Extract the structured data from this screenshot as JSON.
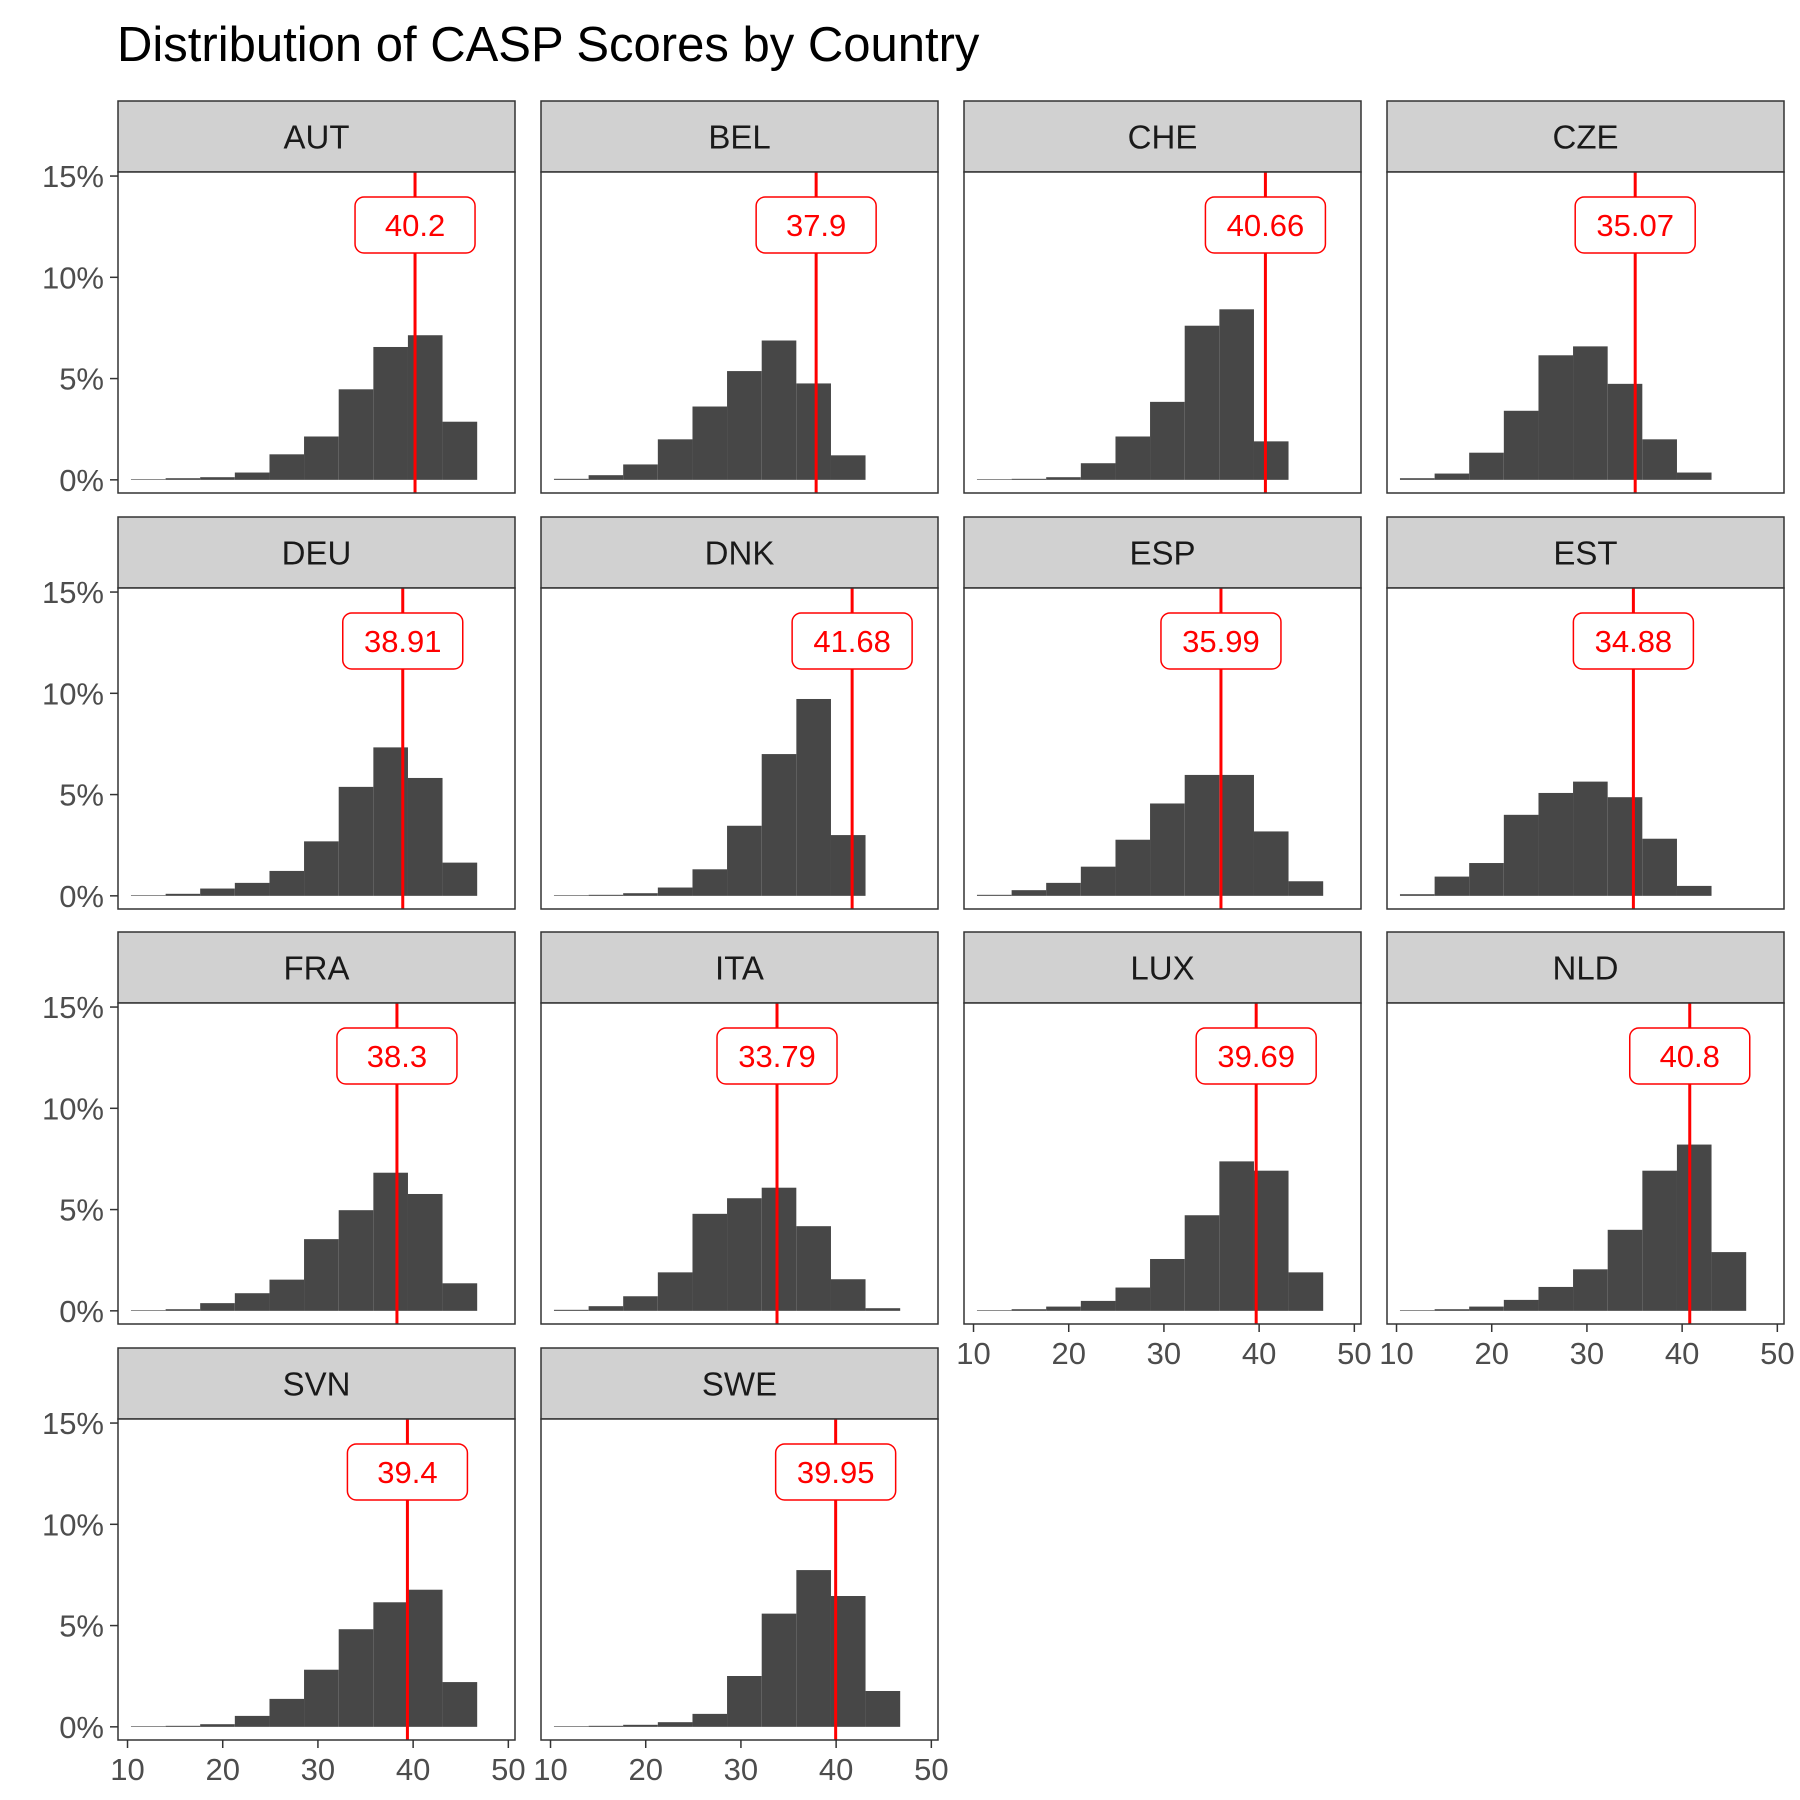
{
  "chart_data": {
    "type": "bar",
    "title": "Distribution of CASP Scores by Country",
    "xlabel": "",
    "ylabel": "",
    "bin_width": 3.636,
    "bin_centers": [
      12.18,
      15.82,
      19.45,
      23.09,
      26.73,
      30.36,
      34.0,
      37.64,
      41.27,
      44.91,
      48.55
    ],
    "xlim": [
      9.0,
      50.7
    ],
    "ylim": [
      -0.0065,
      0.152
    ],
    "x_ticks": [
      10,
      20,
      30,
      40,
      50
    ],
    "x_tick_labels": [
      "10",
      "20",
      "30",
      "40",
      "50"
    ],
    "y_ticks": [
      0,
      0.05,
      0.1,
      0.15
    ],
    "y_tick_labels": [
      "0%",
      "5%",
      "10%",
      "15%"
    ],
    "mean_line_color": "#ff0000",
    "bar_color": "#474747",
    "grid": false,
    "legend": "none",
    "panels": [
      {
        "country": "AUT",
        "mean": 40.2,
        "mean_label": "40.2",
        "values": [
          0.0003,
          0.0008,
          0.0013,
          0.0036,
          0.0126,
          0.0214,
          0.0447,
          0.0656,
          0.0714,
          0.0287,
          0
        ]
      },
      {
        "country": "BEL",
        "mean": 37.9,
        "mean_label": "37.9",
        "values": [
          0.0005,
          0.0023,
          0.0076,
          0.02,
          0.0362,
          0.0537,
          0.0688,
          0.0476,
          0.0121,
          0,
          0
        ]
      },
      {
        "country": "CHE",
        "mean": 40.66,
        "mean_label": "40.66",
        "values": [
          0.0003,
          0.0005,
          0.0013,
          0.0082,
          0.0214,
          0.0385,
          0.0761,
          0.0842,
          0.019,
          0,
          0
        ]
      },
      {
        "country": "CZE",
        "mean": 35.07,
        "mean_label": "35.07",
        "values": [
          0.0008,
          0.0031,
          0.0134,
          0.0341,
          0.0615,
          0.0659,
          0.0474,
          0.02,
          0.0036,
          0,
          0
        ]
      },
      {
        "country": "DEU",
        "mean": 38.91,
        "mean_label": "38.91",
        "values": [
          0.0003,
          0.001,
          0.0036,
          0.0064,
          0.0123,
          0.0269,
          0.0538,
          0.0733,
          0.0582,
          0.0164,
          0
        ]
      },
      {
        "country": "DNK",
        "mean": 41.68,
        "mean_label": "41.68",
        "values": [
          0.0003,
          0.0005,
          0.0013,
          0.0041,
          0.0131,
          0.0346,
          0.07,
          0.0972,
          0.03,
          0,
          0
        ]
      },
      {
        "country": "ESP",
        "mean": 35.99,
        "mean_label": "35.99",
        "values": [
          0.0005,
          0.0028,
          0.0064,
          0.0144,
          0.0277,
          0.0456,
          0.0597,
          0.0597,
          0.0318,
          0.0072,
          0
        ]
      },
      {
        "country": "EST",
        "mean": 34.88,
        "mean_label": "34.88",
        "values": [
          0.0008,
          0.0095,
          0.0162,
          0.04,
          0.0508,
          0.0564,
          0.0487,
          0.0282,
          0.0049,
          0,
          0
        ]
      },
      {
        "country": "FRA",
        "mean": 38.3,
        "mean_label": "38.3",
        "values": [
          0.0003,
          0.0008,
          0.0038,
          0.0087,
          0.0154,
          0.0354,
          0.0497,
          0.0682,
          0.0577,
          0.0136,
          0
        ]
      },
      {
        "country": "ITA",
        "mean": 33.79,
        "mean_label": "33.79",
        "values": [
          0.0005,
          0.0023,
          0.0072,
          0.019,
          0.0479,
          0.0556,
          0.0608,
          0.0418,
          0.0156,
          0.0013,
          0
        ]
      },
      {
        "country": "LUX",
        "mean": 39.69,
        "mean_label": "39.69",
        "values": [
          0.0003,
          0.0008,
          0.0021,
          0.0049,
          0.0115,
          0.0256,
          0.0472,
          0.0738,
          0.0692,
          0.019,
          0
        ]
      },
      {
        "country": "NLD",
        "mean": 40.8,
        "mean_label": "40.8",
        "values": [
          0.0003,
          0.0008,
          0.0021,
          0.0054,
          0.0118,
          0.0205,
          0.04,
          0.0692,
          0.0821,
          0.029,
          0
        ]
      },
      {
        "country": "SVN",
        "mean": 39.4,
        "mean_label": "39.4",
        "values": [
          0.0003,
          0.0005,
          0.0013,
          0.0054,
          0.0138,
          0.0282,
          0.0482,
          0.0615,
          0.0677,
          0.0221,
          0
        ]
      },
      {
        "country": "SWE",
        "mean": 39.95,
        "mean_label": "39.95",
        "values": [
          0.0003,
          0.0005,
          0.001,
          0.0023,
          0.0064,
          0.0251,
          0.0559,
          0.0774,
          0.0646,
          0.0177,
          0
        ]
      }
    ]
  }
}
